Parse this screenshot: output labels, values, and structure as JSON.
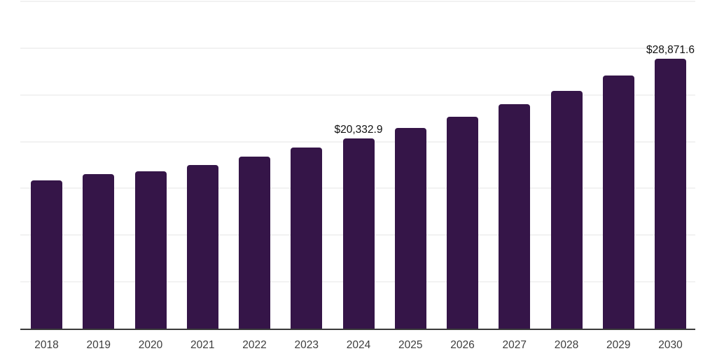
{
  "chart_data": {
    "type": "bar",
    "title": "",
    "xlabel": "",
    "ylabel": "",
    "categories": [
      "2018",
      "2019",
      "2020",
      "2021",
      "2022",
      "2023",
      "2024",
      "2025",
      "2026",
      "2027",
      "2028",
      "2029",
      "2030"
    ],
    "values": [
      15870,
      16540,
      16840,
      17490,
      18400,
      19340,
      20332.9,
      21430,
      22680,
      24000,
      25420,
      27060,
      28871.6
    ],
    "data_labels": {
      "2024": "$20,332.9",
      "2030": "$28,871.6"
    },
    "ylim": [
      0,
      35000
    ],
    "gridline_interval": 5000,
    "grid": "horizontal",
    "legend": "none",
    "colors": {
      "bar": "#351548",
      "gridline": "#f2f2f2",
      "axis": "#3a3a3a",
      "tick_label": "#3d3d3d",
      "data_label": "#0f0f0f",
      "background": "#ffffff"
    }
  }
}
